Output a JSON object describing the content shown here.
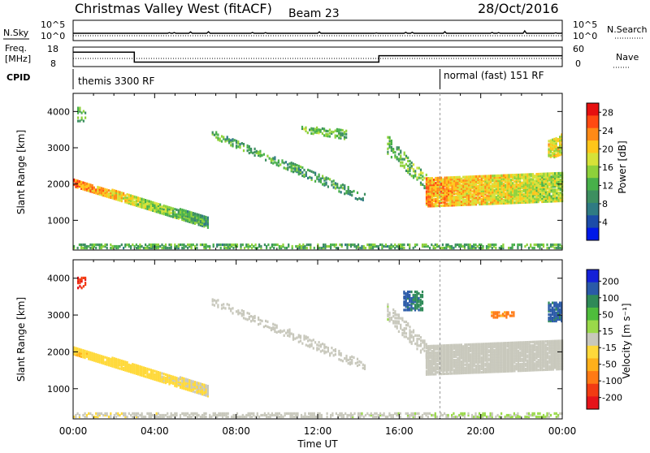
{
  "header": {
    "title": "Christmas Valley West (fitACF)",
    "beam": "Beam 23",
    "date": "28/Oct/2016"
  },
  "aux_panels": {
    "noise": {
      "left_label": "N.Sky",
      "left_ticks": [
        "10^5",
        "10^0"
      ],
      "right_ticks": [
        "10^5",
        "10^0"
      ],
      "right_label": "N.Search"
    },
    "freq": {
      "left_label_line1": "Freq.",
      "left_label_line2": "[MHz]",
      "left_ticks": [
        "18",
        "8"
      ],
      "right_ticks": [
        "60",
        "0"
      ],
      "right_label": "Nave"
    },
    "cpid": {
      "label": "CPID",
      "modes": [
        {
          "text": "themis 3300 RF",
          "start_hour": 0
        },
        {
          "text": "normal (fast) 151 RF",
          "start_hour": 18
        }
      ]
    },
    "freq_series": {
      "steps": [
        {
          "from": 0,
          "to": 3,
          "mhz": 15.4
        },
        {
          "from": 3,
          "to": 15,
          "mhz": 10.3
        },
        {
          "from": 15,
          "to": 24,
          "mhz": 13.6
        }
      ]
    }
  },
  "chart_data": [
    {
      "type": "heatmap",
      "name": "power",
      "xlabel": "Time UT",
      "ylabel": "Slant Range [km]",
      "xlim_hours": [
        0,
        24
      ],
      "ylim_km": [
        180,
        4500
      ],
      "x_ticks": [
        "00:00",
        "04:00",
        "08:00",
        "12:00",
        "16:00",
        "20:00",
        "00:00"
      ],
      "y_ticks": [
        1000,
        2000,
        3000,
        4000
      ],
      "colorbar": {
        "label": "Power [dB]",
        "range": [
          0,
          30
        ],
        "ticks": [
          4,
          8,
          12,
          16,
          20,
          24,
          28
        ],
        "colors": [
          "#0018e8",
          "#1c4ca8",
          "#2f7b83",
          "#3d8f60",
          "#48b04a",
          "#8ed13a",
          "#d6e238",
          "#ffc61a",
          "#ff8a16",
          "#ff4a12",
          "#e60f0f"
        ]
      },
      "regions": [
        {
          "t": [
            0.0,
            6.6
          ],
          "r0": [
            1900,
            760
          ],
          "r1": [
            2100,
            1050
          ],
          "v": [
            24,
            10
          ],
          "density": 0.95
        },
        {
          "t": [
            6.8,
            14.3
          ],
          "r0": [
            3250,
            1450
          ],
          "r1": [
            3450,
            1700
          ],
          "v": [
            12,
            10
          ],
          "density": 0.45
        },
        {
          "t": [
            11.2,
            13.4
          ],
          "r0": [
            3400,
            3200
          ],
          "r1": [
            3550,
            3450
          ],
          "v": [
            14,
            12
          ],
          "density": 0.5
        },
        {
          "t": [
            15.4,
            17.5
          ],
          "r0": [
            2800,
            1700
          ],
          "r1": [
            3300,
            2100
          ],
          "v": [
            12,
            14
          ],
          "density": 0.45
        },
        {
          "t": [
            17.3,
            24.0
          ],
          "r0": [
            1350,
            1500
          ],
          "r1": [
            2150,
            2300
          ],
          "v": [
            22,
            16
          ],
          "density": 0.95
        },
        {
          "t": [
            23.3,
            24.0
          ],
          "r0": [
            2650,
            2800
          ],
          "r1": [
            3150,
            3350
          ],
          "v": [
            18,
            18
          ],
          "density": 0.85
        },
        {
          "t": [
            0.2,
            0.6
          ],
          "r0": [
            3700,
            3700
          ],
          "r1": [
            4100,
            4100
          ],
          "v": [
            12,
            12
          ],
          "density": 0.4
        },
        {
          "t": [
            0.0,
            24.0
          ],
          "r0": [
            200,
            200
          ],
          "r1": [
            320,
            320
          ],
          "v": [
            12,
            12
          ],
          "density": 0.55
        }
      ]
    },
    {
      "type": "heatmap",
      "name": "velocity",
      "xlabel": "Time UT",
      "ylabel": "Slant Range [km]",
      "xlim_hours": [
        0,
        24
      ],
      "ylim_km": [
        180,
        4500
      ],
      "x_ticks": [
        "00:00",
        "04:00",
        "08:00",
        "12:00",
        "16:00",
        "20:00",
        "00:00"
      ],
      "y_ticks": [
        1000,
        2000,
        3000,
        4000
      ],
      "colorbar": {
        "label": "Velocity [m s⁻¹]",
        "range": [
          -250,
          250
        ],
        "ticks": [
          200,
          100,
          50,
          15,
          -15,
          -50,
          -100,
          -200
        ],
        "ground_scatter_color": "#c8c8bc",
        "colors": [
          "#e6131a",
          "#f23b12",
          "#ff7a14",
          "#ffb01a",
          "#ffd93a",
          "#c8c8bc",
          "#9ad94a",
          "#4fbd3c",
          "#2f8a58",
          "#2a5aa8",
          "#1420d8"
        ]
      },
      "regions": [
        {
          "t": [
            0.0,
            6.6
          ],
          "r0": [
            1900,
            760
          ],
          "r1": [
            2100,
            1050
          ],
          "v": [
            -60,
            -20
          ],
          "density": 0.95
        },
        {
          "t": [
            6.8,
            14.3
          ],
          "r0": [
            3250,
            1450
          ],
          "r1": [
            3450,
            1700
          ],
          "v": [
            0,
            0
          ],
          "density": 0.45
        },
        {
          "t": [
            17.3,
            24.0
          ],
          "r0": [
            1350,
            1500
          ],
          "r1": [
            2150,
            2300
          ],
          "v": [
            0,
            0
          ],
          "density": 0.95
        },
        {
          "t": [
            15.4,
            17.5
          ],
          "r0": [
            2800,
            1700
          ],
          "r1": [
            3300,
            2100
          ],
          "v": [
            10,
            0
          ],
          "density": 0.45
        },
        {
          "t": [
            16.2,
            17.1
          ],
          "r0": [
            3100,
            3100
          ],
          "r1": [
            3600,
            3600
          ],
          "v": [
            180,
            140
          ],
          "density": 0.7
        },
        {
          "t": [
            23.3,
            24.0
          ],
          "r0": [
            2800,
            2800
          ],
          "r1": [
            3300,
            3300
          ],
          "v": [
            170,
            170
          ],
          "density": 0.85
        },
        {
          "t": [
            20.5,
            21.6
          ],
          "r0": [
            2900,
            2900
          ],
          "r1": [
            3050,
            3050
          ],
          "v": [
            -120,
            -120
          ],
          "density": 0.6
        },
        {
          "t": [
            0.2,
            0.6
          ],
          "r0": [
            3700,
            3700
          ],
          "r1": [
            4000,
            4000
          ],
          "v": [
            -200,
            -200
          ],
          "density": 0.5
        },
        {
          "t": [
            0.0,
            24.0
          ],
          "r0": [
            200,
            200
          ],
          "r1": [
            320,
            320
          ],
          "v": [
            -20,
            30
          ],
          "density": 0.55
        }
      ]
    }
  ]
}
